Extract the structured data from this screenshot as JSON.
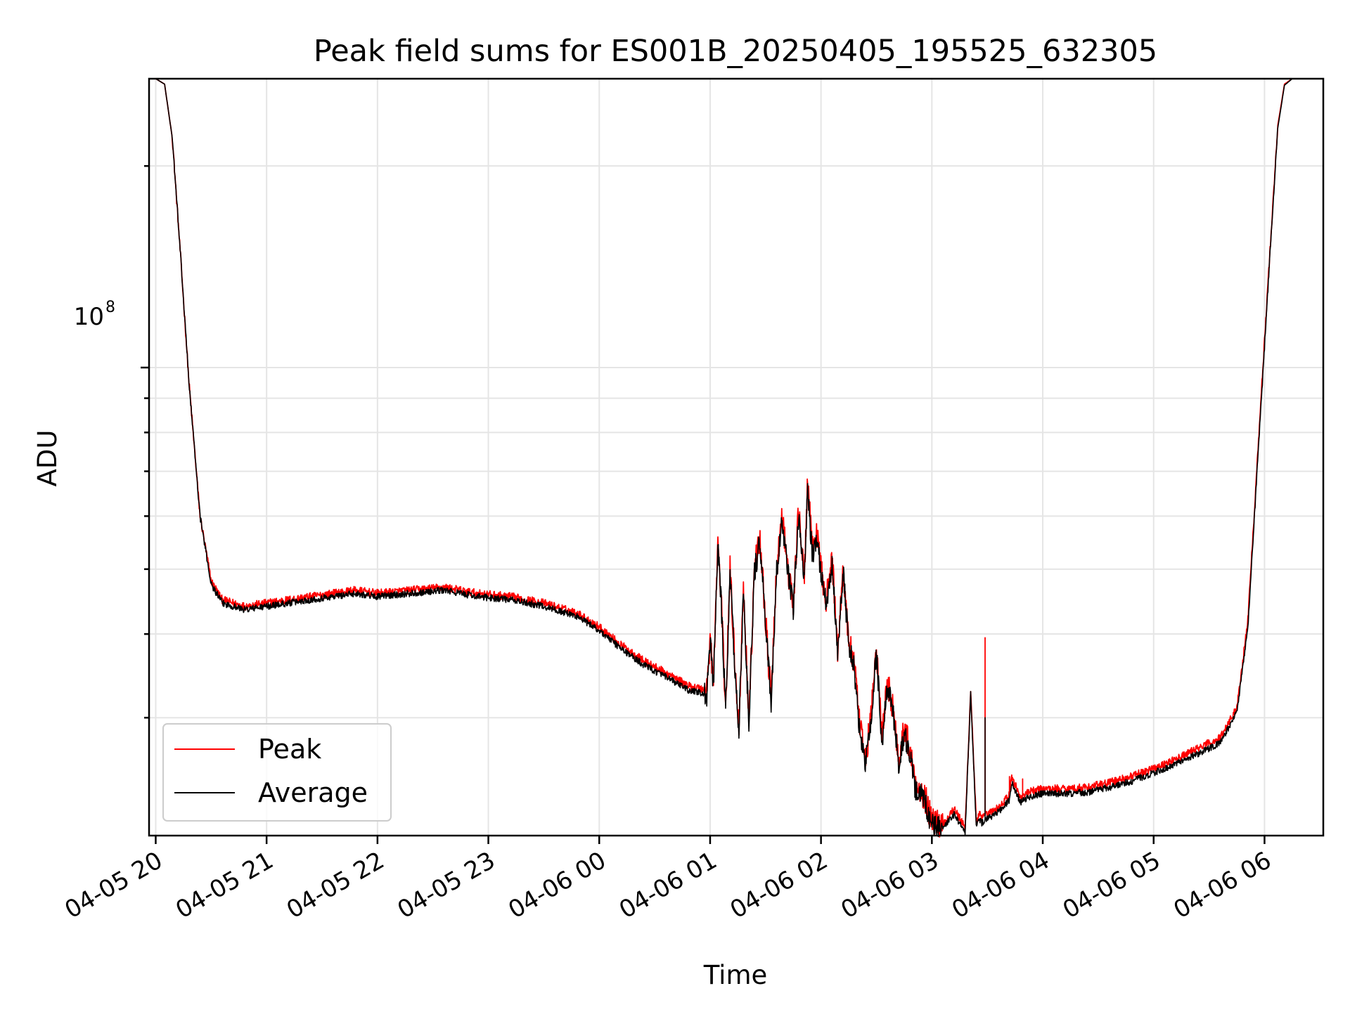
{
  "chart_data": {
    "type": "line",
    "title": "Peak field sums for ES001B_20250405_195525_632305",
    "xlabel": "Time",
    "ylabel": "ADU",
    "yscale": "log",
    "ylim": [
      20000000,
      270000000
    ],
    "y_major_tick": {
      "base": "10",
      "exponent": "8",
      "value": 100000000
    },
    "y_minor_ticks": [
      30000000,
      40000000,
      50000000,
      60000000,
      70000000,
      80000000,
      90000000,
      200000000
    ],
    "xlim_hours": [
      -0.06,
      10.53
    ],
    "x_ticks": [
      {
        "label": "04-05 20",
        "hours": 0
      },
      {
        "label": "04-05 21",
        "hours": 1
      },
      {
        "label": "04-05 22",
        "hours": 2
      },
      {
        "label": "04-05 23",
        "hours": 3
      },
      {
        "label": "04-06 00",
        "hours": 4
      },
      {
        "label": "04-06 01",
        "hours": 5
      },
      {
        "label": "04-06 02",
        "hours": 6
      },
      {
        "label": "04-06 03",
        "hours": 7
      },
      {
        "label": "04-06 04",
        "hours": 8
      },
      {
        "label": "04-06 05",
        "hours": 9
      },
      {
        "label": "04-06 06",
        "hours": 10
      }
    ],
    "legend_position": "lower-left",
    "series": [
      {
        "name": "Peak",
        "color": "#ff0000",
        "x_hours": [
          0.0,
          0.08,
          0.15,
          0.22,
          0.3,
          0.4,
          0.5,
          0.6,
          0.7,
          0.8,
          1.0,
          1.2,
          1.4,
          1.6,
          1.8,
          2.0,
          2.3,
          2.6,
          2.9,
          3.2,
          3.5,
          3.8,
          4.0,
          4.2,
          4.4,
          4.6,
          4.8,
          4.97,
          5.0,
          5.03,
          5.07,
          5.1,
          5.14,
          5.18,
          5.22,
          5.26,
          5.3,
          5.35,
          5.4,
          5.45,
          5.5,
          5.55,
          5.6,
          5.65,
          5.7,
          5.75,
          5.8,
          5.85,
          5.88,
          5.92,
          5.96,
          6.0,
          6.05,
          6.1,
          6.15,
          6.2,
          6.25,
          6.3,
          6.35,
          6.4,
          6.45,
          6.5,
          6.55,
          6.6,
          6.65,
          6.7,
          6.75,
          6.8,
          6.85,
          6.9,
          6.95,
          7.0,
          7.1,
          7.2,
          7.3,
          7.35,
          7.4,
          7.43,
          7.45,
          7.48,
          7.6,
          7.7,
          7.72,
          7.8,
          7.83,
          7.87,
          8.0,
          8.2,
          8.4,
          8.6,
          8.8,
          9.0,
          9.2,
          9.4,
          9.6,
          9.75,
          9.85,
          9.95,
          10.05,
          10.12,
          10.18,
          10.25,
          10.35,
          10.5
        ],
        "values": [
          270000000,
          265000000,
          220000000,
          150000000,
          95000000,
          60000000,
          48000000,
          45000000,
          44500000,
          44000000,
          44500000,
          45000000,
          45500000,
          46000000,
          46500000,
          46000000,
          46500000,
          47000000,
          46000000,
          45500000,
          44500000,
          43000000,
          41000000,
          38500000,
          36500000,
          35000000,
          33500000,
          33000000,
          39500000,
          34000000,
          55000000,
          45000000,
          31000000,
          50000000,
          37000000,
          29000000,
          47000000,
          30000000,
          50000000,
          56000000,
          42000000,
          32000000,
          50000000,
          60000000,
          50000000,
          44000000,
          62000000,
          48000000,
          69000000,
          53000000,
          57000000,
          50000000,
          45000000,
          52000000,
          38000000,
          50000000,
          39000000,
          36000000,
          29000000,
          26000000,
          30000000,
          38000000,
          28000000,
          34000000,
          31000000,
          26000000,
          29000000,
          27000000,
          24000000,
          23500000,
          22500000,
          21000000,
          20800000,
          22000000,
          20500000,
          33000000,
          21000000,
          21500000,
          21200000,
          21400000,
          22000000,
          23000000,
          24500000,
          22800000,
          23000000,
          23200000,
          23500000,
          23500000,
          23600000,
          24000000,
          24500000,
          25200000,
          26000000,
          27000000,
          28000000,
          31000000,
          42000000,
          80000000,
          150000000,
          230000000,
          265000000,
          270000000,
          270000000,
          270000000
        ],
        "spikes": [
          {
            "hours": 7.48,
            "value": 39500000
          },
          {
            "hours": 7.7,
            "value": 24500000
          },
          {
            "hours": 7.82,
            "value": 24300000
          }
        ]
      },
      {
        "name": "Average",
        "color": "#000000",
        "x_hours": [
          0.0,
          0.08,
          0.15,
          0.22,
          0.3,
          0.4,
          0.5,
          0.6,
          0.7,
          0.8,
          1.0,
          1.2,
          1.4,
          1.6,
          1.8,
          2.0,
          2.3,
          2.6,
          2.9,
          3.2,
          3.5,
          3.8,
          4.0,
          4.2,
          4.4,
          4.6,
          4.8,
          4.97,
          5.0,
          5.03,
          5.07,
          5.1,
          5.14,
          5.18,
          5.22,
          5.26,
          5.3,
          5.35,
          5.4,
          5.45,
          5.5,
          5.55,
          5.6,
          5.65,
          5.7,
          5.75,
          5.8,
          5.85,
          5.88,
          5.92,
          5.96,
          6.0,
          6.05,
          6.1,
          6.15,
          6.2,
          6.25,
          6.3,
          6.35,
          6.4,
          6.45,
          6.5,
          6.55,
          6.6,
          6.65,
          6.7,
          6.75,
          6.8,
          6.85,
          6.9,
          6.95,
          7.0,
          7.1,
          7.2,
          7.3,
          7.35,
          7.4,
          7.43,
          7.45,
          7.48,
          7.6,
          7.7,
          7.72,
          7.8,
          7.83,
          7.87,
          8.0,
          8.2,
          8.4,
          8.6,
          8.8,
          9.0,
          9.2,
          9.4,
          9.6,
          9.75,
          9.85,
          9.95,
          10.05,
          10.12,
          10.18,
          10.25,
          10.35,
          10.5
        ],
        "values": [
          270000000,
          265000000,
          220000000,
          150000000,
          95000000,
          60000000,
          47500000,
          44500000,
          44000000,
          43500000,
          44000000,
          44500000,
          45000000,
          45500000,
          46000000,
          45500000,
          46000000,
          46500000,
          45500000,
          45000000,
          44000000,
          42500000,
          40500000,
          38000000,
          36000000,
          34500000,
          33000000,
          32500000,
          39000000,
          33500000,
          54000000,
          44500000,
          30500000,
          49500000,
          36500000,
          28500000,
          46500000,
          29500000,
          49500000,
          55000000,
          41500000,
          31500000,
          49500000,
          59000000,
          49500000,
          43500000,
          61000000,
          47500000,
          67000000,
          52000000,
          56000000,
          49500000,
          44500000,
          51000000,
          37500000,
          49500000,
          38500000,
          35500000,
          28500000,
          25500000,
          29500000,
          37500000,
          27500000,
          33500000,
          30500000,
          25500000,
          28500000,
          26500000,
          23500000,
          23000000,
          22000000,
          20800000,
          20500000,
          21500000,
          20200000,
          32500000,
          20700000,
          21100000,
          20900000,
          21100000,
          21700000,
          22600000,
          24000000,
          22400000,
          22600000,
          22800000,
          23100000,
          23100000,
          23200000,
          23600000,
          24100000,
          24800000,
          25600000,
          26500000,
          27500000,
          30500000,
          41000000,
          78000000,
          148000000,
          228000000,
          264000000,
          270000000,
          270000000,
          270000000
        ],
        "spikes": [
          {
            "hours": 7.48,
            "value": 30000000
          }
        ]
      }
    ]
  }
}
